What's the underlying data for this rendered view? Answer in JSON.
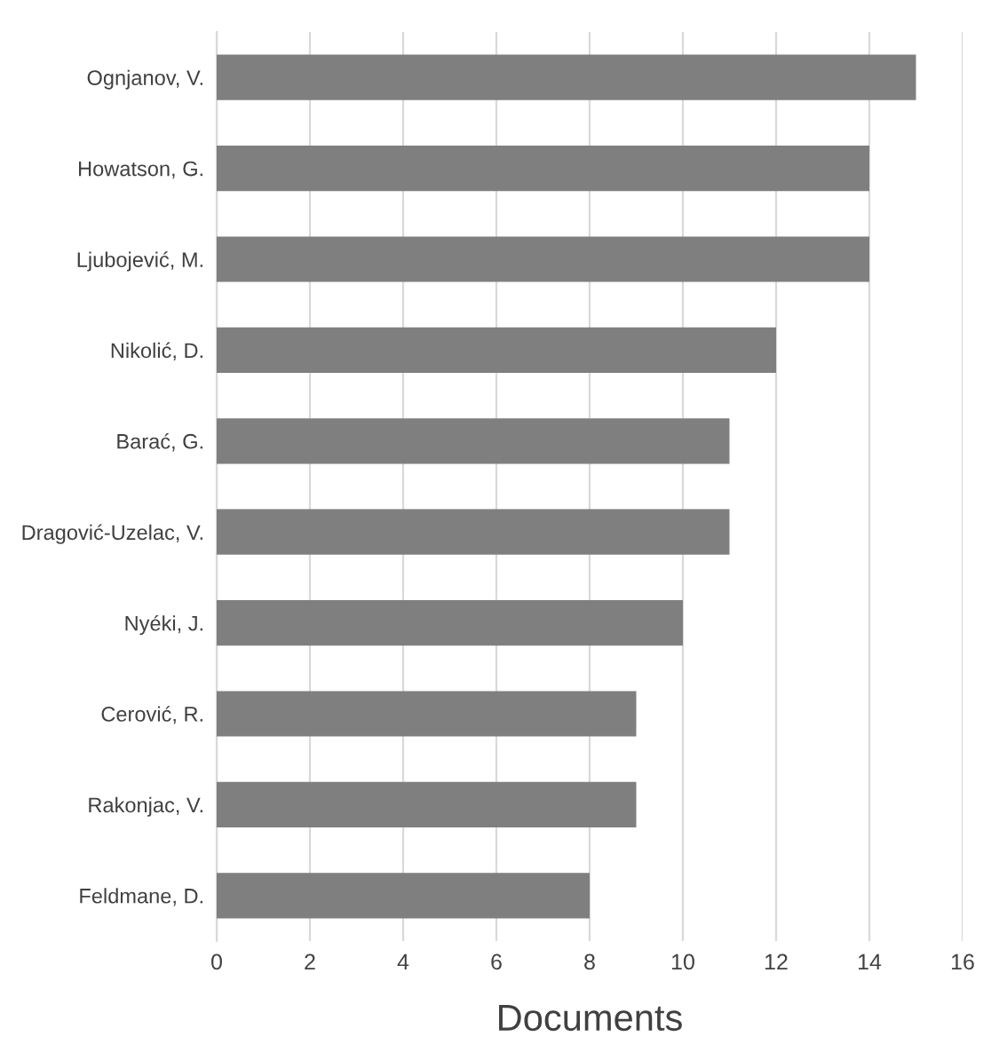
{
  "chart_data": {
    "type": "bar",
    "orientation": "horizontal",
    "xlabel": "Documents",
    "categories": [
      "Ognjanov, V.",
      "Howatson, G.",
      "Ljubojević, M.",
      "Nikolić, D.",
      "Barać, G.",
      "Dragović-Uzelac, V.",
      "Nyéki, J.",
      "Cerović, R.",
      "Rakonjac, V.",
      "Feldmane, D."
    ],
    "values": [
      15,
      14,
      14,
      12,
      11,
      11,
      10,
      9,
      9,
      8
    ],
    "color": "#7f7f7f",
    "xlim": [
      0,
      16
    ],
    "xticks": [
      0,
      2,
      4,
      6,
      8,
      10,
      12,
      14,
      16
    ],
    "grid": "x"
  }
}
